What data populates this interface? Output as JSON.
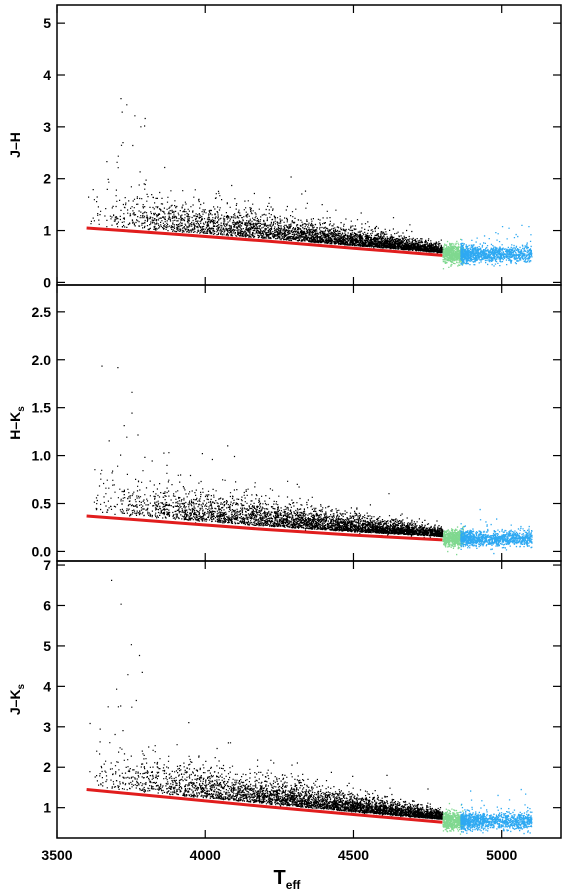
{
  "chart_data": {
    "type": "scatter",
    "x_axis": {
      "label_main": "T",
      "label_sub": "eff",
      "xlim": [
        3500,
        5200
      ],
      "ticks": [
        3500,
        4000,
        4500,
        5000
      ],
      "tick_labels": [
        "3500",
        "4000",
        "4500",
        "5000"
      ]
    },
    "colors": {
      "cool_dwarfs": "#000000",
      "boundary_band": "#7fd88f",
      "warm_dwarfs": "#2ea9f2",
      "locus_line": "#e11d1d"
    },
    "generation": {
      "seed": 20240501
    },
    "panels": [
      {
        "ylabel_main": "J–H",
        "ylabel_sub": "",
        "ylim": [
          5.35,
          -0.05
        ],
        "ticks": [
          0,
          1,
          2,
          3,
          4,
          5
        ],
        "tick_labels": [
          "0",
          "1",
          "2",
          "3",
          "4",
          "5"
        ],
        "locus": {
          "x": [
            3600,
            3900,
            4200,
            4500,
            4800
          ],
          "y": [
            1.05,
            0.93,
            0.8,
            0.66,
            0.52
          ]
        },
        "scatter_model": {
          "n_black": 4200,
          "n_green": 550,
          "n_blue": 1100,
          "offset": 0.06,
          "spread_cool": 0.28,
          "spread_warm": 0.08,
          "tail": 4.9
        }
      },
      {
        "ylabel_main": "H–K",
        "ylabel_sub": "s",
        "ylim": [
          2.78,
          -0.1
        ],
        "ticks": [
          0.0,
          0.5,
          1.0,
          1.5,
          2.0,
          2.5
        ],
        "tick_labels": [
          "0.0",
          "0.5",
          "1.0",
          "1.5",
          "2.0",
          "2.5"
        ],
        "locus": {
          "x": [
            3600,
            3900,
            4200,
            4500,
            4800
          ],
          "y": [
            0.37,
            0.3,
            0.23,
            0.17,
            0.12
          ]
        },
        "scatter_model": {
          "n_black": 4200,
          "n_green": 550,
          "n_blue": 1100,
          "offset": 0.04,
          "spread_cool": 0.16,
          "spread_warm": 0.04,
          "tail": 2.6
        }
      },
      {
        "ylabel_main": "J–K",
        "ylabel_sub": "s",
        "ylim": [
          7.1,
          0.25
        ],
        "ticks": [
          1,
          2,
          3,
          4,
          5,
          6,
          7
        ],
        "tick_labels": [
          "1",
          "2",
          "3",
          "4",
          "5",
          "6",
          "7"
        ],
        "locus": {
          "x": [
            3600,
            3900,
            4200,
            4500,
            4800
          ],
          "y": [
            1.45,
            1.24,
            1.03,
            0.83,
            0.64
          ]
        },
        "scatter_model": {
          "n_black": 4200,
          "n_green": 550,
          "n_blue": 1100,
          "offset": 0.08,
          "spread_cool": 0.4,
          "spread_warm": 0.1,
          "tail": 6.6
        }
      }
    ]
  }
}
